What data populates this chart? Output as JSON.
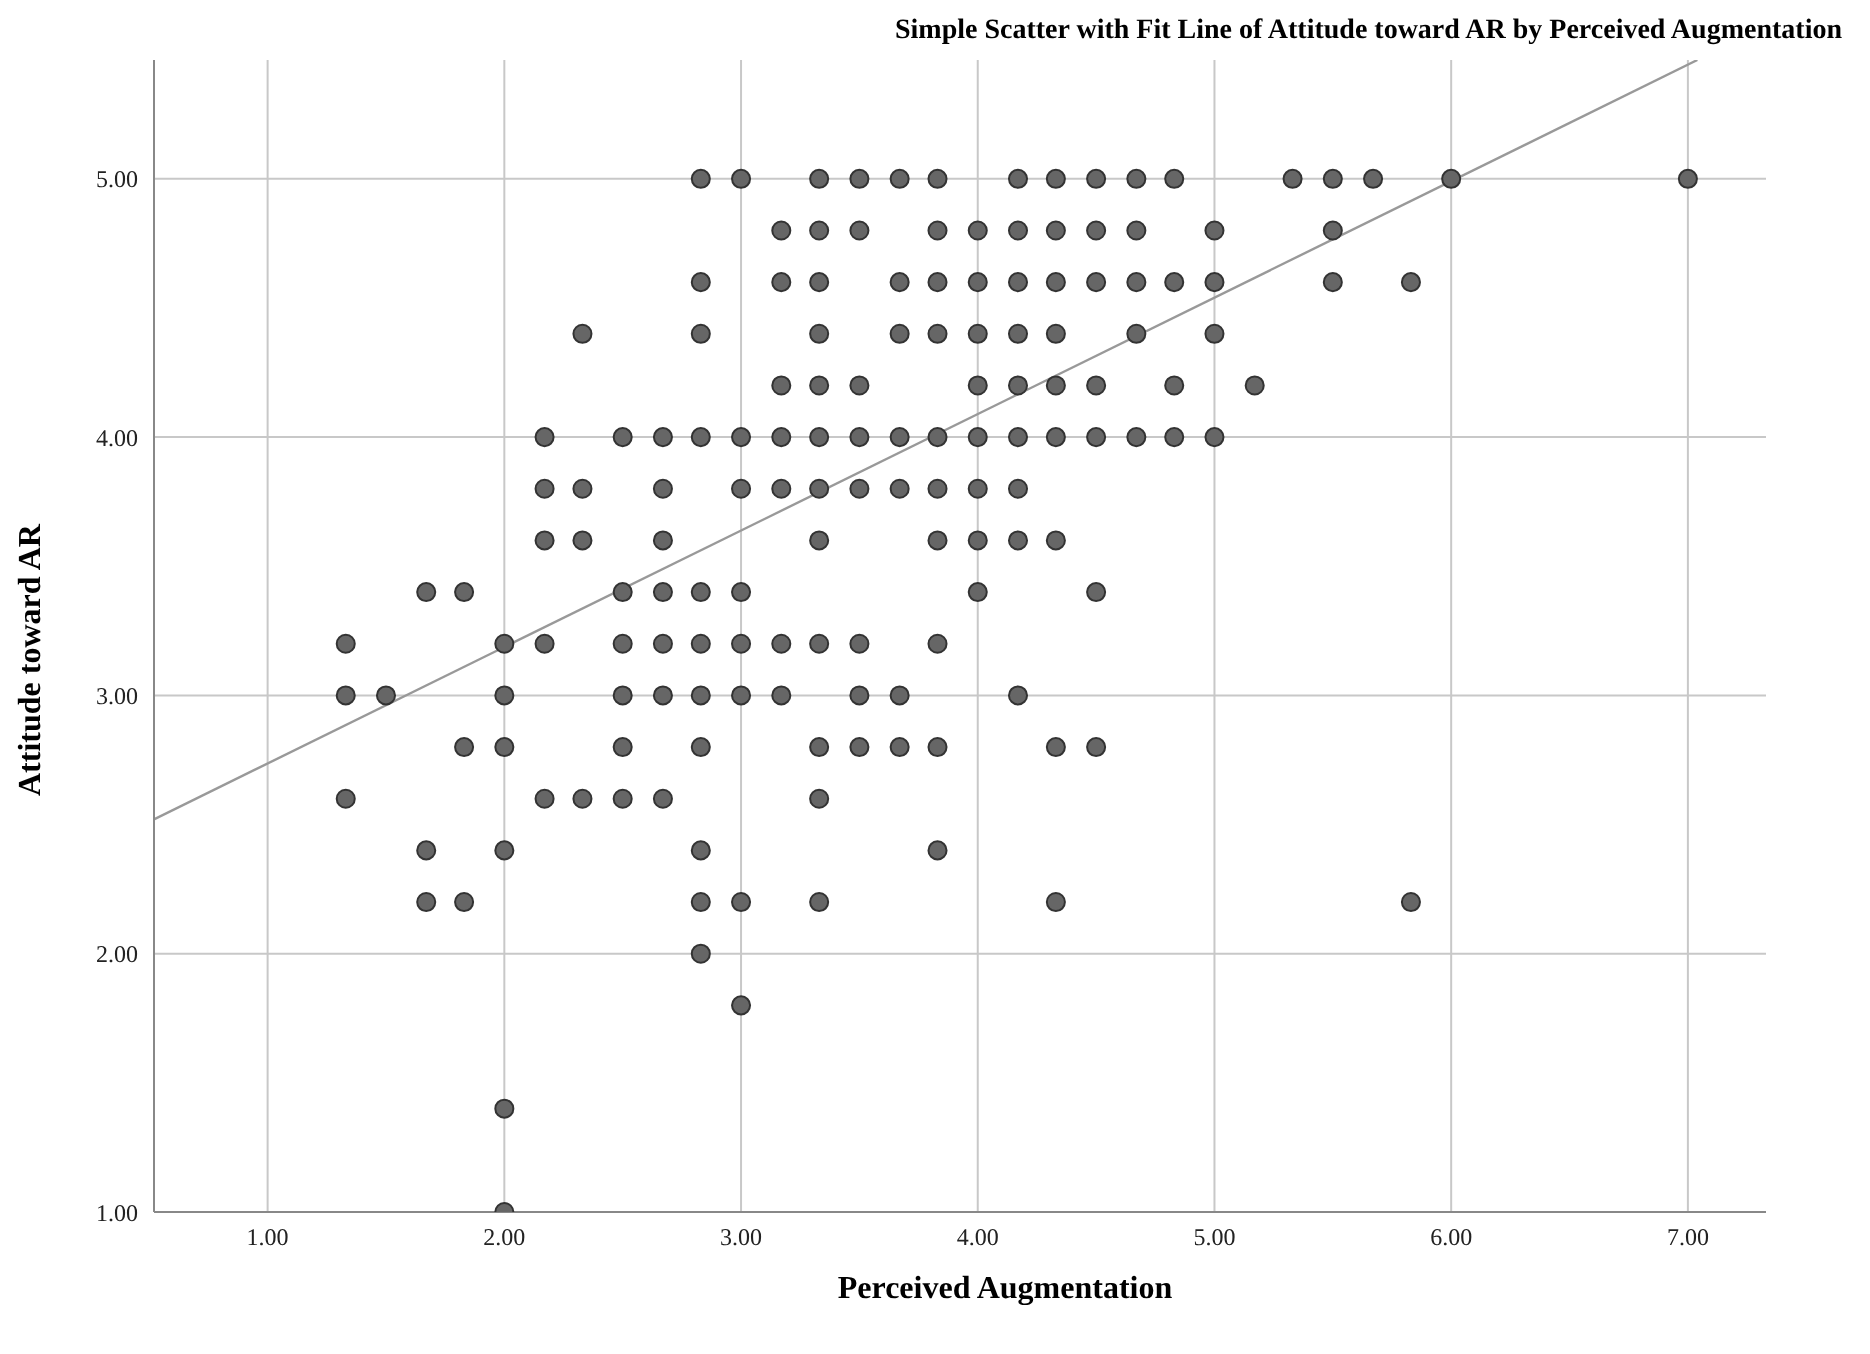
{
  "chart_data": {
    "type": "scatter",
    "title": "Simple Scatter with Fit Line of Attitude toward AR by Perceived Augmentation",
    "xlabel": "Perceived Augmentation",
    "ylabel": "Attitude toward AR",
    "xlim": [
      0.52,
      7.33
    ],
    "ylim": [
      1,
      5.46
    ],
    "xticks": [
      {
        "value": 1,
        "label": "1.00"
      },
      {
        "value": 2,
        "label": "2.00"
      },
      {
        "value": 3,
        "label": "3.00"
      },
      {
        "value": 4,
        "label": "4.00"
      },
      {
        "value": 5,
        "label": "5.00"
      },
      {
        "value": 6,
        "label": "6.00"
      },
      {
        "value": 7,
        "label": "7.00"
      }
    ],
    "yticks": [
      {
        "value": 1,
        "label": "1.00"
      },
      {
        "value": 2,
        "label": "2.00"
      },
      {
        "value": 3,
        "label": "3.00"
      },
      {
        "value": 4,
        "label": "4.00"
      },
      {
        "value": 5,
        "label": "5.00"
      }
    ],
    "grid": true,
    "series": [
      {
        "marker": "circle",
        "color": "#666666",
        "x": [
          2.83,
          3,
          3.33,
          3.5,
          3.67,
          3.83,
          4.17,
          4.33,
          4.5,
          4.67,
          4.83,
          5.33,
          5.5,
          5.67,
          6,
          7,
          3.17,
          3.33,
          3.5,
          3.83,
          4,
          4.17,
          4.33,
          4.5,
          4.67,
          5,
          5.5,
          2.83,
          3.17,
          3.33,
          3.67,
          3.83,
          4,
          4.17,
          4.33,
          4.5,
          4.67,
          4.83,
          5,
          5.5,
          5.83,
          2.33,
          2.83,
          3.33,
          3.67,
          3.83,
          4,
          4.17,
          4.33,
          4.67,
          5,
          3.17,
          3.33,
          3.5,
          4,
          4.17,
          4.33,
          4.5,
          4.83,
          5.17,
          2.17,
          2.5,
          2.67,
          2.83,
          3,
          3.17,
          3.33,
          3.5,
          3.67,
          3.83,
          4,
          4.17,
          4.33,
          4.5,
          4.67,
          4.83,
          5,
          2.17,
          2.33,
          2.67,
          3,
          3.17,
          3.33,
          3.5,
          3.67,
          3.83,
          4,
          4.17,
          2.17,
          2.33,
          2.67,
          3.33,
          3.83,
          4,
          4.17,
          4.33,
          1.67,
          1.83,
          2.5,
          2.67,
          2.83,
          3,
          4,
          4.5,
          1.33,
          2,
          2.17,
          2.5,
          2.67,
          2.83,
          3,
          3.17,
          3.33,
          3.5,
          3.83,
          1.33,
          1.5,
          2,
          2.5,
          2.67,
          2.83,
          3,
          3.17,
          3.5,
          3.67,
          4.17,
          1.83,
          2,
          2.5,
          2.83,
          3.33,
          3.5,
          3.67,
          3.83,
          4.33,
          4.5,
          1.33,
          2.17,
          2.33,
          2.5,
          2.67,
          3.33,
          1.67,
          2,
          2.83,
          3.83,
          1.67,
          1.83,
          2.83,
          3,
          3.33,
          4.33,
          5.83,
          2.83,
          3,
          2,
          2
        ],
        "values": [
          5,
          5,
          5,
          5,
          5,
          5,
          5,
          5,
          5,
          5,
          5,
          5,
          5,
          5,
          5,
          5,
          4.8,
          4.8,
          4.8,
          4.8,
          4.8,
          4.8,
          4.8,
          4.8,
          4.8,
          4.8,
          4.8,
          4.6,
          4.6,
          4.6,
          4.6,
          4.6,
          4.6,
          4.6,
          4.6,
          4.6,
          4.6,
          4.6,
          4.6,
          4.6,
          4.6,
          4.4,
          4.4,
          4.4,
          4.4,
          4.4,
          4.4,
          4.4,
          4.4,
          4.4,
          4.4,
          4.2,
          4.2,
          4.2,
          4.2,
          4.2,
          4.2,
          4.2,
          4.2,
          4.2,
          4,
          4,
          4,
          4,
          4,
          4,
          4,
          4,
          4,
          4,
          4,
          4,
          4,
          4,
          4,
          4,
          4,
          3.8,
          3.8,
          3.8,
          3.8,
          3.8,
          3.8,
          3.8,
          3.8,
          3.8,
          3.8,
          3.8,
          3.6,
          3.6,
          3.6,
          3.6,
          3.6,
          3.6,
          3.6,
          3.6,
          3.4,
          3.4,
          3.4,
          3.4,
          3.4,
          3.4,
          3.4,
          3.4,
          3.2,
          3.2,
          3.2,
          3.2,
          3.2,
          3.2,
          3.2,
          3.2,
          3.2,
          3.2,
          3.2,
          3,
          3,
          3,
          3,
          3,
          3,
          3,
          3,
          3,
          3,
          3,
          2.8,
          2.8,
          2.8,
          2.8,
          2.8,
          2.8,
          2.8,
          2.8,
          2.8,
          2.8,
          2.6,
          2.6,
          2.6,
          2.6,
          2.6,
          2.6,
          2.4,
          2.4,
          2.4,
          2.4,
          2.2,
          2.2,
          2.2,
          2.2,
          2.2,
          2.2,
          2.2,
          2,
          1.8,
          1.4,
          1
        ]
      },
      {
        "type": "line",
        "marker": "none",
        "color": "#999999",
        "x": [
          0.52,
          7.04
        ],
        "values": [
          2.52,
          5.46
        ]
      }
    ]
  }
}
